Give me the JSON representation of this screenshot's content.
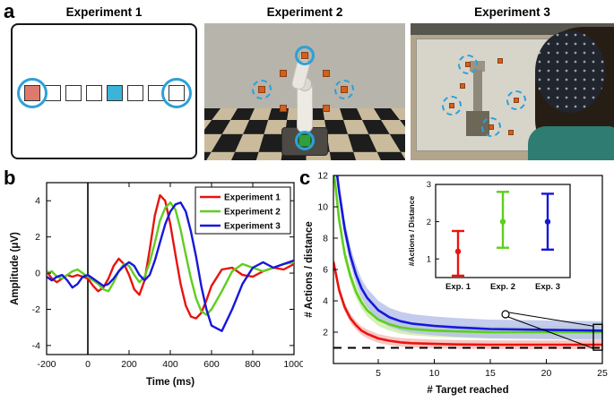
{
  "figure": {
    "panel_labels": {
      "a": "a",
      "b": "b",
      "c": "c"
    }
  },
  "panels": {
    "a": {
      "experiments": [
        {
          "title": "Experiment 1"
        },
        {
          "title": "Experiment 2"
        },
        {
          "title": "Experiment 3"
        }
      ],
      "exp1": {
        "squares": [
          "salmon",
          "white",
          "white",
          "white",
          "cyan",
          "white",
          "white",
          "white"
        ],
        "circled": [
          0,
          7
        ]
      }
    }
  },
  "colors": {
    "exp1_line": "#e8140e",
    "exp2_line": "#5fce1f",
    "exp3_line": "#1717dc",
    "circle_blue": "#2da0d8",
    "target_orange": "#d2601e",
    "square_salmon": "#dd7a6e",
    "square_cyan": "#3cb4d8",
    "base_green": "#2f9e3c"
  },
  "chart_data": [
    {
      "type": "line",
      "id": "erp",
      "xlabel": "Time (ms)",
      "ylabel": "Amplitude (μV)",
      "xlim": [
        -200,
        1000
      ],
      "ylim": [
        -4.5,
        5
      ],
      "xticks": [
        -200,
        0,
        200,
        400,
        600,
        800,
        1000
      ],
      "yticks": [
        -4,
        -2,
        0,
        2,
        4
      ],
      "event_line_x": 0,
      "legend_position": "top-right",
      "series": [
        {
          "name": "Experiment 1",
          "color": "#e8140e",
          "x": [
            -200,
            -175,
            -150,
            -125,
            -100,
            -75,
            -50,
            -25,
            0,
            25,
            50,
            75,
            100,
            125,
            150,
            175,
            200,
            225,
            250,
            275,
            300,
            325,
            350,
            375,
            400,
            425,
            450,
            475,
            500,
            525,
            550,
            575,
            600,
            650,
            700,
            750,
            800,
            850,
            900,
            950,
            1000
          ],
          "y": [
            0.1,
            -0.3,
            -0.5,
            -0.3,
            -0.1,
            -0.2,
            -0.1,
            -0.2,
            -0.3,
            -0.7,
            -1.0,
            -0.8,
            -0.3,
            0.4,
            0.8,
            0.5,
            -0.1,
            -0.9,
            -1.2,
            -0.4,
            1.3,
            3.2,
            4.3,
            4.0,
            2.7,
            1.0,
            -0.6,
            -1.8,
            -2.4,
            -2.5,
            -2.2,
            -1.5,
            -0.7,
            0.2,
            0.3,
            -0.1,
            -0.2,
            0.1,
            0.3,
            0.2,
            0.5
          ]
        },
        {
          "name": "Experiment 2",
          "color": "#5fce1f",
          "x": [
            -200,
            -175,
            -150,
            -125,
            -100,
            -75,
            -50,
            -25,
            0,
            25,
            50,
            75,
            100,
            125,
            150,
            175,
            200,
            225,
            250,
            275,
            300,
            325,
            350,
            375,
            400,
            425,
            450,
            475,
            500,
            525,
            550,
            575,
            600,
            650,
            700,
            750,
            800,
            850,
            900,
            950,
            1000
          ],
          "y": [
            0.0,
            0.1,
            -0.2,
            -0.3,
            -0.1,
            0.1,
            0.2,
            0.0,
            -0.2,
            -0.4,
            -0.6,
            -0.9,
            -1.0,
            -0.5,
            0.1,
            0.5,
            0.4,
            -0.1,
            -0.5,
            -0.2,
            0.6,
            1.7,
            2.9,
            3.6,
            3.9,
            3.5,
            2.4,
            1.0,
            -0.3,
            -1.4,
            -2.1,
            -2.3,
            -2.0,
            -1.0,
            0.1,
            0.5,
            0.3,
            0.1,
            0.3,
            0.5,
            0.6
          ]
        },
        {
          "name": "Experiment 3",
          "color": "#1717dc",
          "x": [
            -200,
            -175,
            -150,
            -125,
            -100,
            -75,
            -50,
            -25,
            0,
            25,
            50,
            75,
            100,
            125,
            150,
            175,
            200,
            225,
            250,
            275,
            300,
            325,
            350,
            375,
            400,
            425,
            450,
            475,
            500,
            525,
            550,
            575,
            600,
            650,
            700,
            750,
            800,
            850,
            900,
            950,
            1000
          ],
          "y": [
            -0.2,
            -0.4,
            -0.2,
            -0.1,
            -0.4,
            -0.8,
            -0.6,
            -0.2,
            -0.1,
            -0.3,
            -0.5,
            -0.7,
            -0.6,
            -0.3,
            0.1,
            0.4,
            0.6,
            0.4,
            -0.1,
            -0.4,
            -0.1,
            0.7,
            1.7,
            2.7,
            3.4,
            3.8,
            3.9,
            3.4,
            2.3,
            0.9,
            -0.7,
            -2.0,
            -2.9,
            -3.2,
            -2.0,
            -0.6,
            0.3,
            0.6,
            0.3,
            0.5,
            0.7
          ]
        }
      ]
    },
    {
      "type": "line",
      "id": "performance",
      "xlabel": "# Target reached",
      "ylabel": "# Actions / distance",
      "xlim": [
        1,
        25
      ],
      "ylim": [
        0,
        12
      ],
      "xticks": [
        5,
        10,
        15,
        20,
        25
      ],
      "yticks": [
        2,
        4,
        6,
        8,
        10,
        12
      ],
      "dashed_reference_y": 1,
      "series": [
        {
          "name": "Experiment 1",
          "color": "#e8140e",
          "band_color": "#f6b9b6",
          "band_halfwidth": 0.28,
          "x": [
            1,
            1.5,
            2,
            2.5,
            3,
            3.5,
            4,
            5,
            6,
            7,
            8,
            10,
            12,
            15,
            20,
            25
          ],
          "y": [
            6.5,
            4.7,
            3.6,
            2.9,
            2.45,
            2.1,
            1.9,
            1.6,
            1.45,
            1.35,
            1.3,
            1.25,
            1.22,
            1.2,
            1.2,
            1.2
          ]
        },
        {
          "name": "Experiment 2",
          "color": "#5fce1f",
          "band_color": "#cdeba6",
          "band_halfwidth": 0.4,
          "x": [
            1,
            1.5,
            2,
            2.5,
            3,
            3.5,
            4,
            5,
            6,
            7,
            8,
            10,
            12,
            15,
            20,
            25
          ],
          "y": [
            12.5,
            9.2,
            7.0,
            5.6,
            4.6,
            3.9,
            3.4,
            2.8,
            2.5,
            2.3,
            2.2,
            2.1,
            2.05,
            2.0,
            2.0,
            2.0
          ]
        },
        {
          "name": "Experiment 3",
          "color": "#1717dc",
          "band_color": "#b4bfe8",
          "band_halfwidth": 0.6,
          "x": [
            1,
            1.5,
            2,
            2.5,
            3,
            3.5,
            4,
            5,
            6,
            7,
            8,
            10,
            12,
            15,
            20,
            25
          ],
          "y": [
            14,
            11,
            8.6,
            6.9,
            5.7,
            4.8,
            4.2,
            3.4,
            2.95,
            2.7,
            2.55,
            2.4,
            2.3,
            2.2,
            2.15,
            2.1
          ]
        }
      ],
      "inset": {
        "ylabel": "#Actions / Distance",
        "ylim": [
          0.5,
          3
        ],
        "yticks": [
          1,
          2,
          3
        ],
        "categories": [
          "Exp. 1",
          "Exp. 2",
          "Exp. 3"
        ],
        "points": [
          {
            "label": "Exp. 1",
            "color": "#e8140e",
            "mean": 1.2,
            "low": 0.55,
            "high": 1.75
          },
          {
            "label": "Exp. 2",
            "color": "#5fce1f",
            "mean": 2.0,
            "low": 1.3,
            "high": 2.8
          },
          {
            "label": "Exp. 3",
            "color": "#1717dc",
            "mean": 2.0,
            "low": 1.25,
            "high": 2.75
          }
        ]
      },
      "zoom_box": {
        "x0": 24.2,
        "x1": 25,
        "y0": 0.85,
        "y1": 2.5
      }
    }
  ]
}
